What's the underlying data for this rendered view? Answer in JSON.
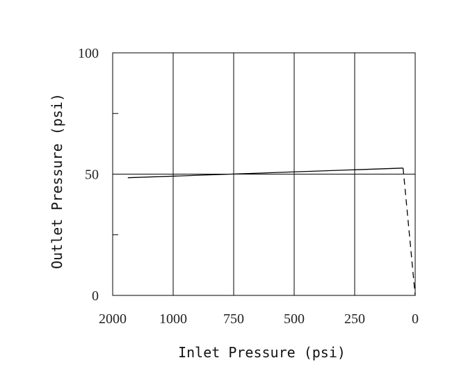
{
  "chart_data": {
    "type": "line",
    "title": "",
    "xlabel": "Inlet Pressure (psi)",
    "ylabel": "Outlet Pressure (psi)",
    "x_tick_labels": [
      "2000",
      "1000",
      "750",
      "500",
      "250",
      "0"
    ],
    "y_tick_labels": [
      "0",
      "50",
      "100"
    ],
    "ylim": [
      0,
      100
    ],
    "y_minor_ticks": [
      25,
      75
    ],
    "x_axis_reversed": true,
    "x_axis_note": "tick labels are evenly spaced categories (not linear)",
    "grid": {
      "vertical_at_x_ticks": true,
      "horizontal_at": [
        50
      ]
    },
    "series": [
      {
        "style": "solid",
        "x": [
          1750,
          50
        ],
        "y": [
          48.5,
          52.5
        ]
      },
      {
        "style": "dashed",
        "x": [
          50,
          0
        ],
        "y": [
          52.5,
          0
        ]
      }
    ]
  }
}
